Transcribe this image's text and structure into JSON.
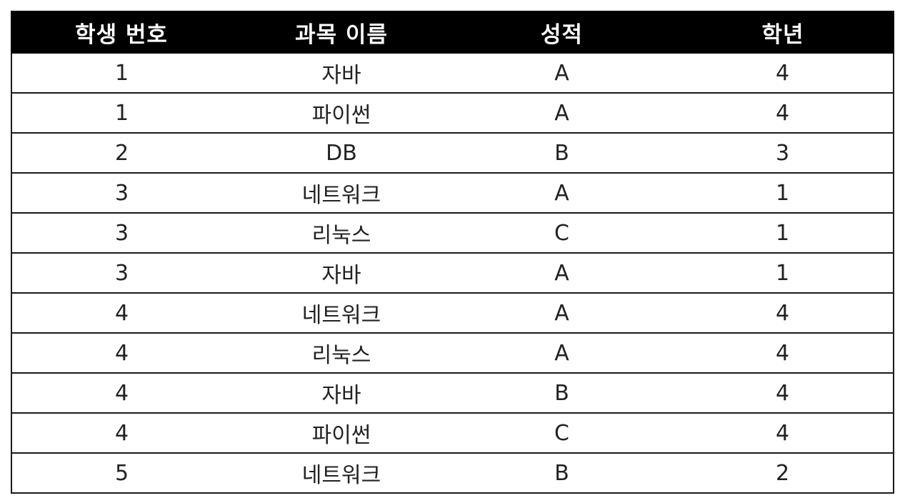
{
  "table": {
    "headers": [
      "학생 번호",
      "과목 이름",
      "성적",
      "학년"
    ],
    "rows": [
      [
        "1",
        "자바",
        "A",
        "4"
      ],
      [
        "1",
        "파이썬",
        "A",
        "4"
      ],
      [
        "2",
        "DB",
        "B",
        "3"
      ],
      [
        "3",
        "네트워크",
        "A",
        "1"
      ],
      [
        "3",
        "리눅스",
        "C",
        "1"
      ],
      [
        "3",
        "자바",
        "A",
        "1"
      ],
      [
        "4",
        "네트워크",
        "A",
        "4"
      ],
      [
        "4",
        "리눅스",
        "A",
        "4"
      ],
      [
        "4",
        "자바",
        "B",
        "4"
      ],
      [
        "4",
        "파이썬",
        "C",
        "4"
      ],
      [
        "5",
        "네트워크",
        "B",
        "2"
      ]
    ]
  },
  "colors": {
    "header_bg": "#000000",
    "header_text": "#ffffff",
    "border": "#1a1a1a"
  }
}
